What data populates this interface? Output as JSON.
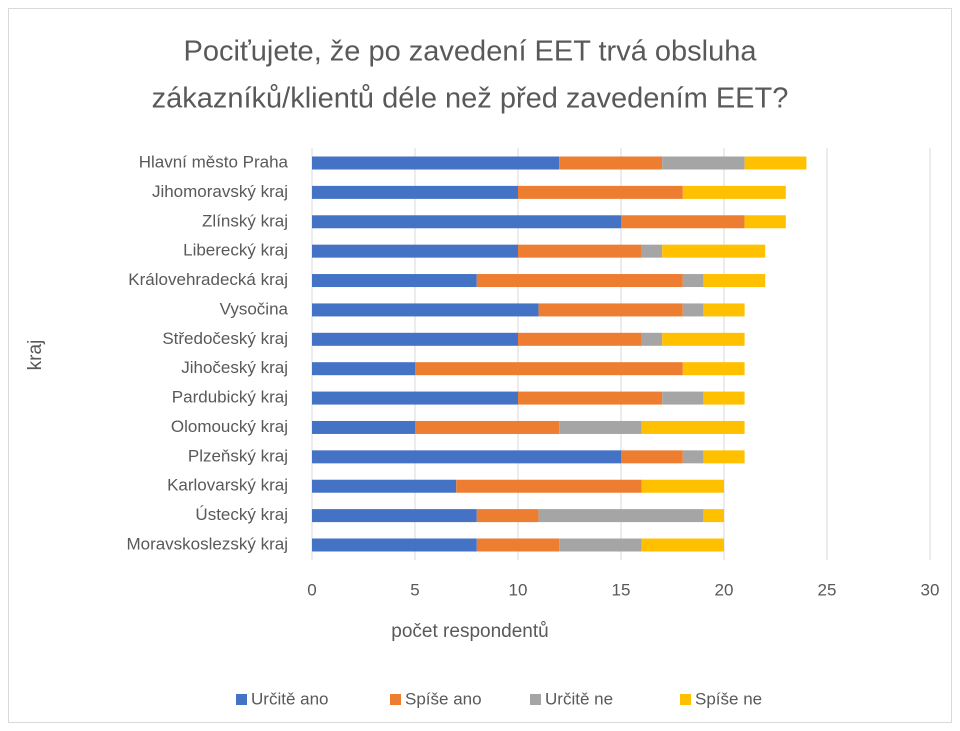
{
  "chart_data": {
    "type": "stacked-bar-horizontal",
    "title": [
      "Pociťujete, že po zavedení EET trvá obsluha",
      "zákazníků/klientů déle než před zavedením EET?"
    ],
    "x_label": "počet respondentů",
    "y_label": "kraj",
    "categories": [
      "Hlavní město Praha",
      "Jihomoravský kraj",
      "Zlínský kraj",
      "Liberecký kraj",
      "Královehradecká kraj",
      "Vysočina",
      "Středočeský kraj",
      "Jihočeský kraj",
      "Pardubický kraj",
      "Olomoucký kraj",
      "Plzeňský kraj",
      "Karlovarský kraj",
      "Ústecký kraj",
      "Moravskoslezský kraj"
    ],
    "series": [
      {
        "name": "Určitě ano",
        "color": "#4472c4",
        "values": [
          12,
          10,
          15,
          10,
          8,
          11,
          10,
          5,
          10,
          5,
          15,
          7,
          8,
          8
        ]
      },
      {
        "name": "Spíše ano",
        "color": "#ed7d31",
        "values": [
          5,
          8,
          6,
          6,
          10,
          7,
          6,
          13,
          7,
          7,
          3,
          9,
          3,
          4
        ]
      },
      {
        "name": "Určitě ne",
        "color": "#a5a5a5",
        "values": [
          4,
          0,
          0,
          1,
          1,
          1,
          1,
          0,
          2,
          4,
          1,
          0,
          8,
          4
        ]
      },
      {
        "name": "Spíše ne",
        "color": "#ffc000",
        "values": [
          3,
          5,
          2,
          5,
          3,
          2,
          4,
          3,
          2,
          5,
          2,
          4,
          1,
          4
        ]
      }
    ],
    "xlim": [
      0,
      30
    ],
    "xticks": [
      0,
      5,
      10,
      15,
      20,
      25,
      30
    ],
    "grid": true,
    "legend": "bottom"
  }
}
